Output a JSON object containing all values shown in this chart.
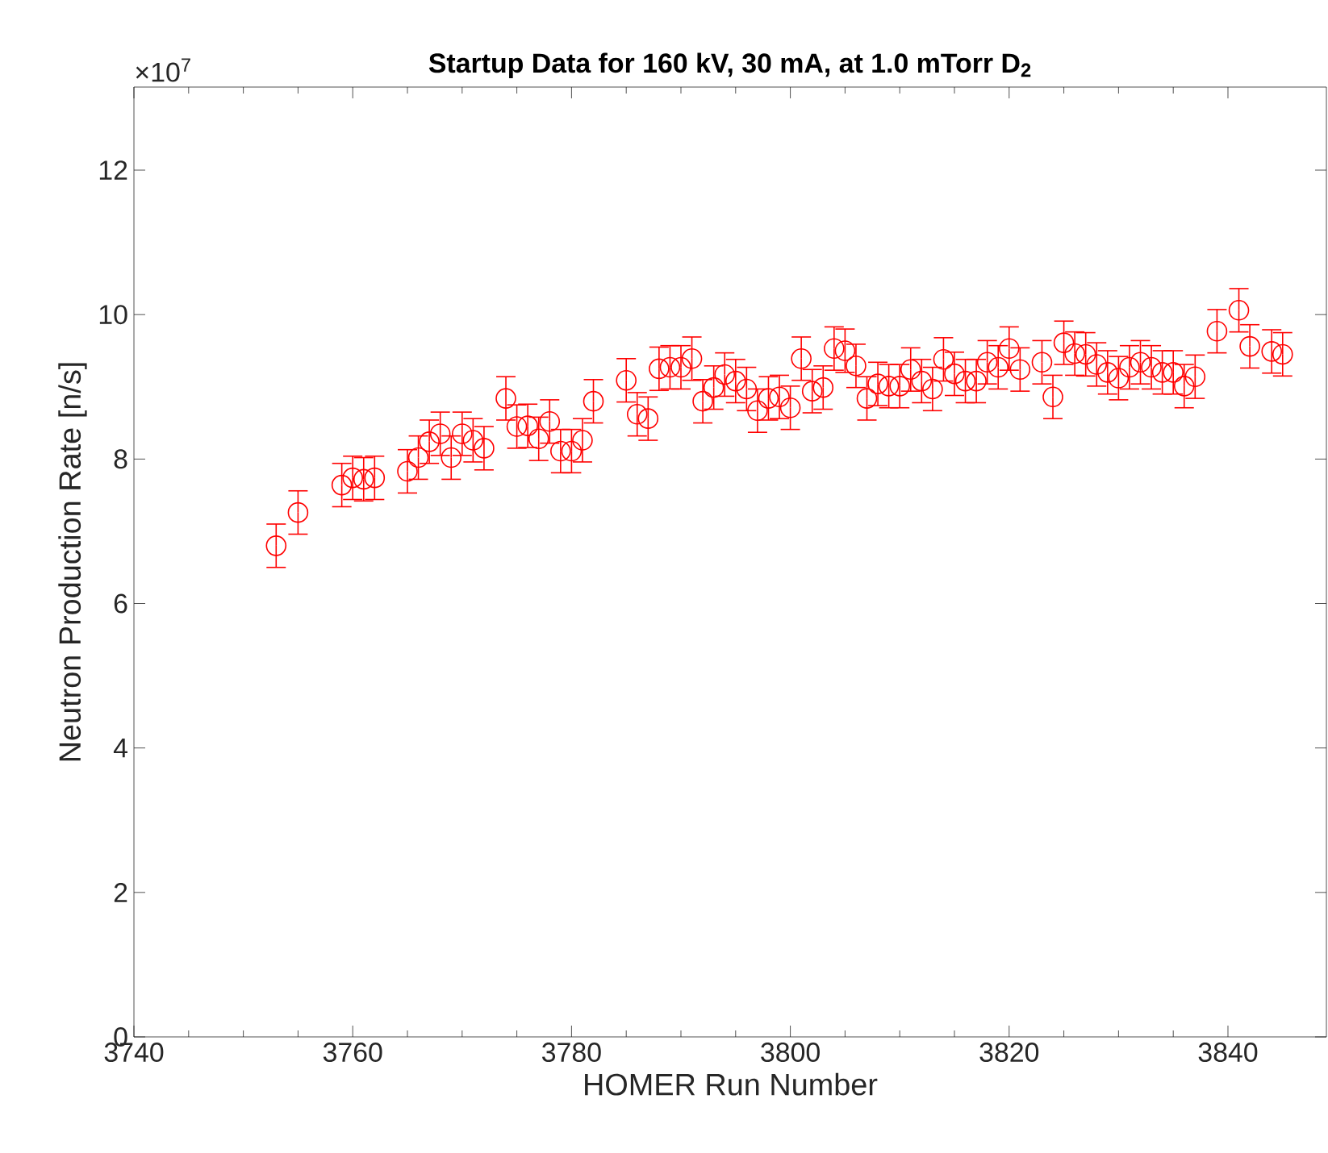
{
  "chart_data": {
    "type": "scatter",
    "title": "Startup Data for 160 kV, 30 mA, at 1.0 mTorr D$_{2}$",
    "xlabel": "HOMER Run Number",
    "ylabel": "Neutron Production Rate [n/s]",
    "annotations": [
      "×10$^{7}$"
    ],
    "x": [
      3753,
      3755,
      3759,
      3760,
      3761,
      3762,
      3765,
      3766,
      3767,
      3768,
      3769,
      3770,
      3771,
      3772,
      3774,
      3775,
      3776,
      3777,
      3778,
      3779,
      3780,
      3781,
      3782,
      3785,
      3786,
      3787,
      3788,
      3789,
      3790,
      3791,
      3792,
      3793,
      3794,
      3795,
      3796,
      3797,
      3798,
      3799,
      3800,
      3801,
      3802,
      3803,
      3804,
      3805,
      3806,
      3807,
      3808,
      3809,
      3810,
      3811,
      3812,
      3813,
      3814,
      3815,
      3816,
      3817,
      3818,
      3819,
      3820,
      3821,
      3823,
      3824,
      3825,
      3826,
      3827,
      3828,
      3829,
      3830,
      3831,
      3832,
      3833,
      3834,
      3835,
      3836,
      3837,
      3839,
      3841,
      3842,
      3844,
      3845
    ],
    "series": [
      {
        "color": "#ff0000",
        "marker": "circle",
        "values": [
          6.8,
          7.26,
          7.64,
          7.74,
          7.72,
          7.74,
          7.83,
          8.02,
          8.24,
          8.35,
          8.02,
          8.35,
          8.26,
          8.15,
          8.84,
          8.45,
          8.46,
          8.28,
          8.52,
          8.11,
          8.11,
          8.26,
          8.8,
          9.09,
          8.62,
          8.56,
          9.25,
          9.27,
          9.27,
          9.39,
          8.8,
          8.99,
          9.17,
          9.08,
          8.97,
          8.67,
          8.84,
          8.86,
          8.71,
          9.39,
          8.94,
          8.99,
          9.53,
          9.5,
          9.29,
          8.84,
          9.04,
          9.01,
          9.01,
          9.24,
          9.08,
          8.97,
          9.38,
          9.18,
          9.08,
          9.08,
          9.34,
          9.27,
          9.53,
          9.24,
          9.34,
          8.86,
          9.61,
          9.46,
          9.45,
          9.31,
          9.2,
          9.12,
          9.27,
          9.34,
          9.27,
          9.2,
          9.2,
          9.01,
          9.14,
          9.77,
          10.06,
          9.56,
          9.49,
          9.45
        ],
        "errors": [
          0.3,
          0.3,
          0.3,
          0.3,
          0.3,
          0.3,
          0.3,
          0.3,
          0.3,
          0.3,
          0.3,
          0.3,
          0.3,
          0.3,
          0.3,
          0.3,
          0.3,
          0.3,
          0.3,
          0.3,
          0.3,
          0.3,
          0.3,
          0.3,
          0.3,
          0.3,
          0.3,
          0.3,
          0.3,
          0.3,
          0.3,
          0.3,
          0.3,
          0.3,
          0.3,
          0.3,
          0.3,
          0.3,
          0.3,
          0.3,
          0.3,
          0.3,
          0.3,
          0.3,
          0.3,
          0.3,
          0.3,
          0.3,
          0.3,
          0.3,
          0.3,
          0.3,
          0.3,
          0.3,
          0.3,
          0.3,
          0.3,
          0.3,
          0.3,
          0.3,
          0.3,
          0.3,
          0.3,
          0.3,
          0.3,
          0.3,
          0.3,
          0.3,
          0.3,
          0.3,
          0.3,
          0.3,
          0.3,
          0.3,
          0.3,
          0.3,
          0.3,
          0.3,
          0.3,
          0.3
        ]
      }
    ],
    "xlim": [
      3740,
      3849
    ],
    "ylim": [
      0,
      13.15
    ],
    "xticks": [
      3740,
      3760,
      3780,
      3800,
      3820,
      3840
    ],
    "yticks": [
      0,
      2,
      4,
      6,
      8,
      10,
      12
    ]
  }
}
